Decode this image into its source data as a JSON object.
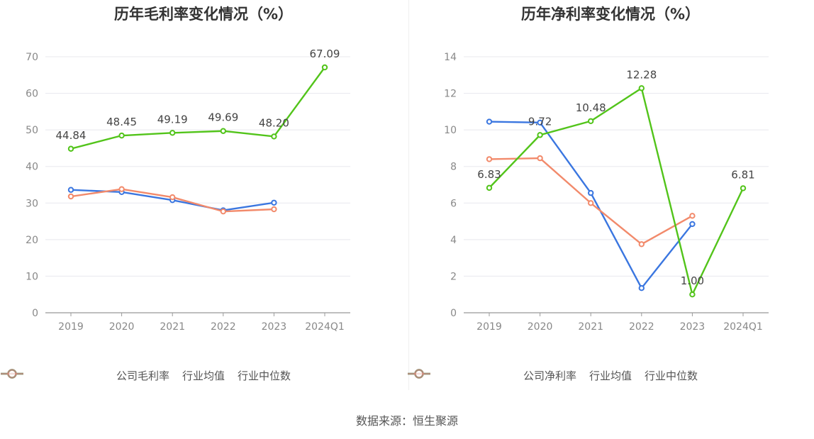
{
  "colors": {
    "company": "#52c41a",
    "avg": "#3a76e0",
    "median": "#f28a6b"
  },
  "source": "数据来源：恒生聚源",
  "chart_data": [
    {
      "type": "line",
      "title": "历年毛利率变化情况（%）",
      "categories": [
        "2019",
        "2020",
        "2021",
        "2022",
        "2023",
        "2024Q1"
      ],
      "ylim": [
        0,
        70
      ],
      "yticks": [
        0,
        10,
        20,
        30,
        40,
        50,
        60,
        70
      ],
      "series": [
        {
          "name": "公司毛利率",
          "key": "company",
          "values": [
            44.84,
            48.45,
            49.19,
            49.69,
            48.2,
            67.09
          ],
          "labels": [
            "44.84",
            "48.45",
            "49.19",
            "49.69",
            "48.20",
            "67.09"
          ]
        },
        {
          "name": "行业均值",
          "key": "avg",
          "values": [
            33.6,
            33.0,
            30.8,
            28.0,
            30.1,
            null
          ]
        },
        {
          "name": "行业中位数",
          "key": "median",
          "values": [
            31.8,
            33.8,
            31.6,
            27.7,
            28.3,
            null
          ]
        }
      ]
    },
    {
      "type": "line",
      "title": "历年净利率变化情况（%）",
      "categories": [
        "2019",
        "2020",
        "2021",
        "2022",
        "2023",
        "2024Q1"
      ],
      "ylim": [
        0,
        14
      ],
      "yticks": [
        0,
        2,
        4,
        6,
        8,
        10,
        12,
        14
      ],
      "series": [
        {
          "name": "公司净利率",
          "key": "company",
          "values": [
            6.83,
            9.72,
            10.48,
            12.28,
            1.0,
            6.81
          ],
          "labels": [
            "6.83",
            "9.72",
            "10.48",
            "12.28",
            "1.00",
            "6.81"
          ]
        },
        {
          "name": "行业均值",
          "key": "avg",
          "values": [
            10.45,
            10.4,
            6.55,
            1.35,
            4.85,
            null
          ]
        },
        {
          "name": "行业中位数",
          "key": "median",
          "values": [
            8.4,
            8.45,
            6.0,
            3.75,
            5.3,
            null
          ]
        }
      ]
    }
  ]
}
